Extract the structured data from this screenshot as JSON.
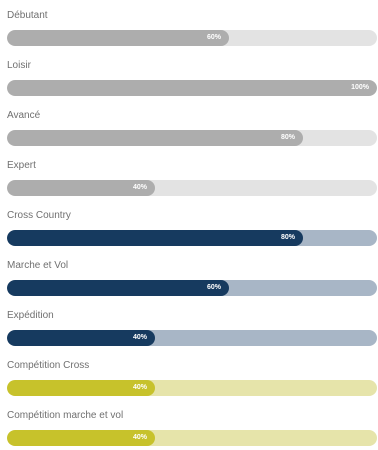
{
  "skills": [
    {
      "label": "Débutant",
      "value": 60,
      "value_label": "60%",
      "fill_color": "#adadad",
      "track_color": "#e3e3e3"
    },
    {
      "label": "Loisir",
      "value": 100,
      "value_label": "100%",
      "fill_color": "#adadad",
      "track_color": "#e3e3e3"
    },
    {
      "label": "Avancé",
      "value": 80,
      "value_label": "80%",
      "fill_color": "#adadad",
      "track_color": "#e3e3e3"
    },
    {
      "label": "Expert",
      "value": 40,
      "value_label": "40%",
      "fill_color": "#adadad",
      "track_color": "#e3e3e3"
    },
    {
      "label": "Cross Country",
      "value": 80,
      "value_label": "80%",
      "fill_color": "#163a5f",
      "track_color": "#a8b6c6"
    },
    {
      "label": "Marche et Vol",
      "value": 60,
      "value_label": "60%",
      "fill_color": "#163a5f",
      "track_color": "#a8b6c6"
    },
    {
      "label": "Expédition",
      "value": 40,
      "value_label": "40%",
      "fill_color": "#163a5f",
      "track_color": "#a8b6c6"
    },
    {
      "label": "Compétition Cross",
      "value": 40,
      "value_label": "40%",
      "fill_color": "#c7c22b",
      "track_color": "#e6e4aa"
    },
    {
      "label": "Compétition marche et vol",
      "value": 40,
      "value_label": "40%",
      "fill_color": "#c7c22b",
      "track_color": "#e6e4aa"
    }
  ]
}
